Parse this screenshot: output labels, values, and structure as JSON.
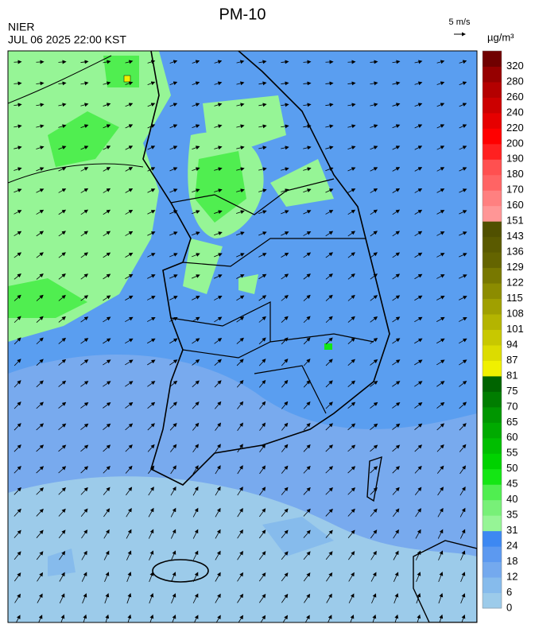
{
  "header": {
    "title": "PM-10",
    "agency": "NIER",
    "datetime": "JUL 06 2025 22:00 KST",
    "wind_scale": "5 m/s"
  },
  "legend": {
    "unit": "µg/m³",
    "labels": [
      0,
      6,
      12,
      18,
      24,
      31,
      35,
      40,
      45,
      50,
      55,
      60,
      65,
      70,
      75,
      81,
      87,
      94,
      101,
      108,
      115,
      122,
      129,
      136,
      143,
      151,
      160,
      170,
      180,
      190,
      200,
      220,
      240,
      260,
      280,
      320
    ],
    "colors": [
      "#9ccbea",
      "#86bbec",
      "#74a9ee",
      "#5c99f0",
      "#3d88f2",
      "#96f596",
      "#78f078",
      "#50ee50",
      "#14e614",
      "#00d200",
      "#00be00",
      "#00aa00",
      "#009600",
      "#007d00",
      "#006400",
      "#f0f000",
      "#dcdc00",
      "#c8c800",
      "#b4b400",
      "#a0a000",
      "#8c8c00",
      "#787800",
      "#646400",
      "#5a5a00",
      "#505000",
      "#ff9696",
      "#ff8080",
      "#ff6464",
      "#ff5050",
      "#ff2020",
      "#ff0000",
      "#e60000",
      "#cc0000",
      "#b40000",
      "#960000",
      "#700000"
    ]
  }
}
